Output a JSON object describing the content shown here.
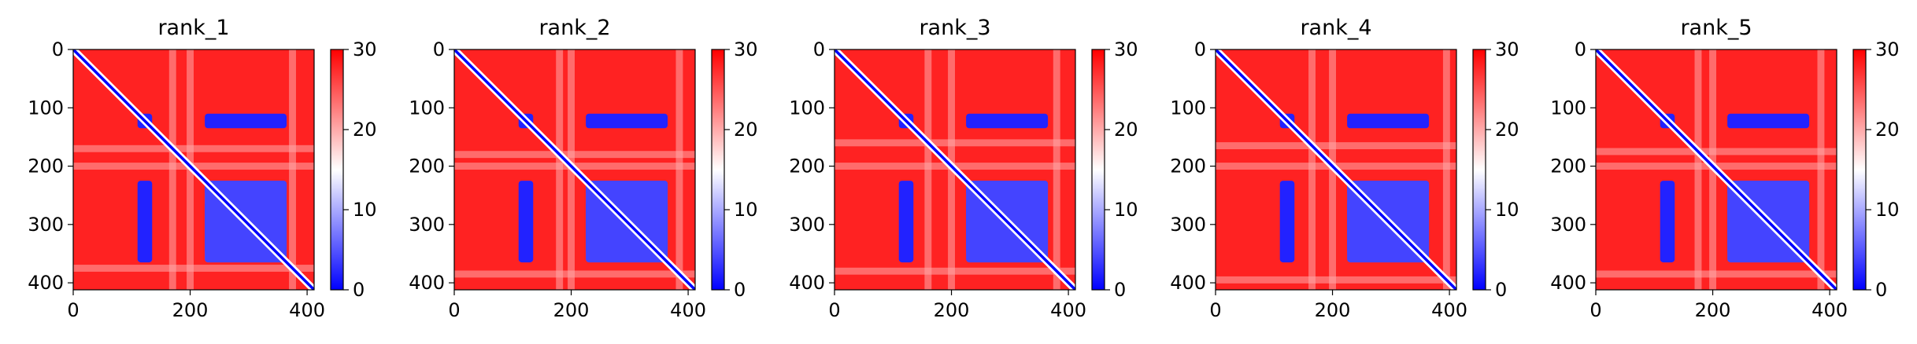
{
  "chart_data": [
    {
      "type": "heatmap",
      "title": "rank_1",
      "x_ticks": [
        0,
        200,
        400
      ],
      "y_ticks": [
        0,
        100,
        200,
        300,
        400
      ],
      "xlim": [
        0,
        412
      ],
      "ylim": [
        0,
        412
      ],
      "colorbar": {
        "ticks": [
          0,
          10,
          20,
          30
        ],
        "range": [
          0,
          30
        ],
        "colormap": "bwr"
      },
      "blocks": [
        {
          "r": [
            110,
            135
          ],
          "c": [
            110,
            135
          ],
          "v": 2
        },
        {
          "r": [
            110,
            135
          ],
          "c": [
            225,
            365
          ],
          "v": 2
        },
        {
          "r": [
            225,
            365
          ],
          "c": [
            110,
            135
          ],
          "v": 2
        },
        {
          "r": [
            225,
            250
          ],
          "c": [
            225,
            365
          ],
          "v": 3
        },
        {
          "r": [
            260,
            350
          ],
          "c": [
            225,
            365
          ],
          "v": 3
        },
        {
          "r": [
            225,
            365
          ],
          "c": [
            225,
            365
          ],
          "v": 4
        }
      ],
      "light_bands": [
        170,
        200,
        375
      ]
    },
    {
      "type": "heatmap",
      "title": "rank_2",
      "x_ticks": [
        0,
        200,
        400
      ],
      "y_ticks": [
        0,
        100,
        200,
        300,
        400
      ],
      "xlim": [
        0,
        412
      ],
      "ylim": [
        0,
        412
      ],
      "colorbar": {
        "ticks": [
          0,
          10,
          20,
          30
        ],
        "range": [
          0,
          30
        ],
        "colormap": "bwr"
      },
      "blocks": [
        {
          "r": [
            110,
            135
          ],
          "c": [
            110,
            135
          ],
          "v": 2
        },
        {
          "r": [
            110,
            135
          ],
          "c": [
            225,
            365
          ],
          "v": 2
        },
        {
          "r": [
            225,
            365
          ],
          "c": [
            110,
            135
          ],
          "v": 2
        },
        {
          "r": [
            225,
            250
          ],
          "c": [
            225,
            365
          ],
          "v": 3
        },
        {
          "r": [
            260,
            350
          ],
          "c": [
            225,
            365
          ],
          "v": 3
        },
        {
          "r": [
            225,
            365
          ],
          "c": [
            225,
            365
          ],
          "v": 4
        }
      ],
      "light_bands": [
        180,
        200,
        385
      ]
    },
    {
      "type": "heatmap",
      "title": "rank_3",
      "x_ticks": [
        0,
        200,
        400
      ],
      "y_ticks": [
        0,
        100,
        200,
        300,
        400
      ],
      "xlim": [
        0,
        412
      ],
      "ylim": [
        0,
        412
      ],
      "colorbar": {
        "ticks": [
          0,
          10,
          20,
          30
        ],
        "range": [
          0,
          30
        ],
        "colormap": "bwr"
      },
      "blocks": [
        {
          "r": [
            110,
            135
          ],
          "c": [
            110,
            135
          ],
          "v": 2
        },
        {
          "r": [
            110,
            135
          ],
          "c": [
            225,
            365
          ],
          "v": 2
        },
        {
          "r": [
            225,
            365
          ],
          "c": [
            110,
            135
          ],
          "v": 2
        },
        {
          "r": [
            225,
            250
          ],
          "c": [
            225,
            365
          ],
          "v": 3
        },
        {
          "r": [
            260,
            350
          ],
          "c": [
            225,
            365
          ],
          "v": 3
        },
        {
          "r": [
            225,
            365
          ],
          "c": [
            225,
            365
          ],
          "v": 4
        }
      ],
      "light_bands": [
        160,
        200,
        380
      ]
    },
    {
      "type": "heatmap",
      "title": "rank_4",
      "x_ticks": [
        0,
        200,
        400
      ],
      "y_ticks": [
        0,
        100,
        200,
        300,
        400
      ],
      "xlim": [
        0,
        412
      ],
      "ylim": [
        0,
        412
      ],
      "colorbar": {
        "ticks": [
          0,
          10,
          20,
          30
        ],
        "range": [
          0,
          30
        ],
        "colormap": "bwr"
      },
      "blocks": [
        {
          "r": [
            110,
            135
          ],
          "c": [
            110,
            135
          ],
          "v": 2
        },
        {
          "r": [
            110,
            135
          ],
          "c": [
            225,
            365
          ],
          "v": 2
        },
        {
          "r": [
            225,
            365
          ],
          "c": [
            110,
            135
          ],
          "v": 2
        },
        {
          "r": [
            225,
            250
          ],
          "c": [
            225,
            365
          ],
          "v": 3
        },
        {
          "r": [
            260,
            350
          ],
          "c": [
            225,
            365
          ],
          "v": 3
        },
        {
          "r": [
            225,
            365
          ],
          "c": [
            225,
            365
          ],
          "v": 4
        }
      ],
      "light_bands": [
        165,
        200,
        395
      ]
    },
    {
      "type": "heatmap",
      "title": "rank_5",
      "x_ticks": [
        0,
        200,
        400
      ],
      "y_ticks": [
        0,
        100,
        200,
        300,
        400
      ],
      "xlim": [
        0,
        412
      ],
      "ylim": [
        0,
        412
      ],
      "colorbar": {
        "ticks": [
          0,
          10,
          20,
          30
        ],
        "range": [
          0,
          30
        ],
        "colormap": "bwr"
      },
      "blocks": [
        {
          "r": [
            110,
            135
          ],
          "c": [
            110,
            135
          ],
          "v": 2
        },
        {
          "r": [
            110,
            135
          ],
          "c": [
            225,
            365
          ],
          "v": 2
        },
        {
          "r": [
            225,
            365
          ],
          "c": [
            110,
            135
          ],
          "v": 2
        },
        {
          "r": [
            225,
            250
          ],
          "c": [
            225,
            365
          ],
          "v": 3
        },
        {
          "r": [
            260,
            350
          ],
          "c": [
            225,
            365
          ],
          "v": 3
        },
        {
          "r": [
            225,
            365
          ],
          "c": [
            225,
            365
          ],
          "v": 4
        }
      ],
      "light_bands": [
        175,
        200,
        385
      ]
    }
  ],
  "colors": {
    "high": "#ff0000",
    "mid": "#ffffff",
    "low": "#0000ff"
  }
}
